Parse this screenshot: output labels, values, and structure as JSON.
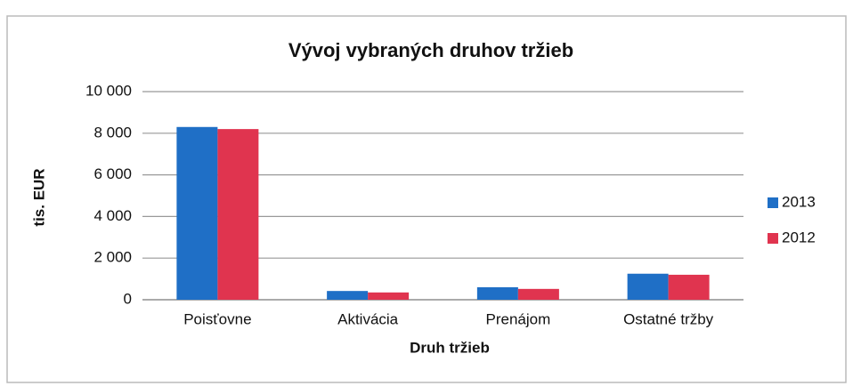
{
  "chart_data": {
    "type": "bar",
    "title": "Vývoj vybraných druhov tržieb",
    "xlabel": "Druh tržieb",
    "ylabel": "tis. EUR",
    "categories": [
      "Poisťovne",
      "Aktivácia",
      "Prenájom",
      "Ostatné tržby"
    ],
    "series": [
      {
        "name": "2013",
        "color": "#1f6fc6",
        "values": [
          8300,
          420,
          600,
          1250
        ]
      },
      {
        "name": "2012",
        "color": "#e0344f",
        "values": [
          8200,
          350,
          520,
          1200
        ]
      }
    ],
    "ylim": [
      0,
      10000
    ],
    "yticks": [
      0,
      {
        "value": 2000,
        "label": "2 000"
      },
      {
        "value": 4000,
        "label": "4 000"
      },
      {
        "value": 6000,
        "label": "6 000"
      },
      {
        "value": 8000,
        "label": "8 000"
      },
      {
        "value": 10000,
        "label": "10 000"
      }
    ],
    "grid": true,
    "legend": "right"
  }
}
